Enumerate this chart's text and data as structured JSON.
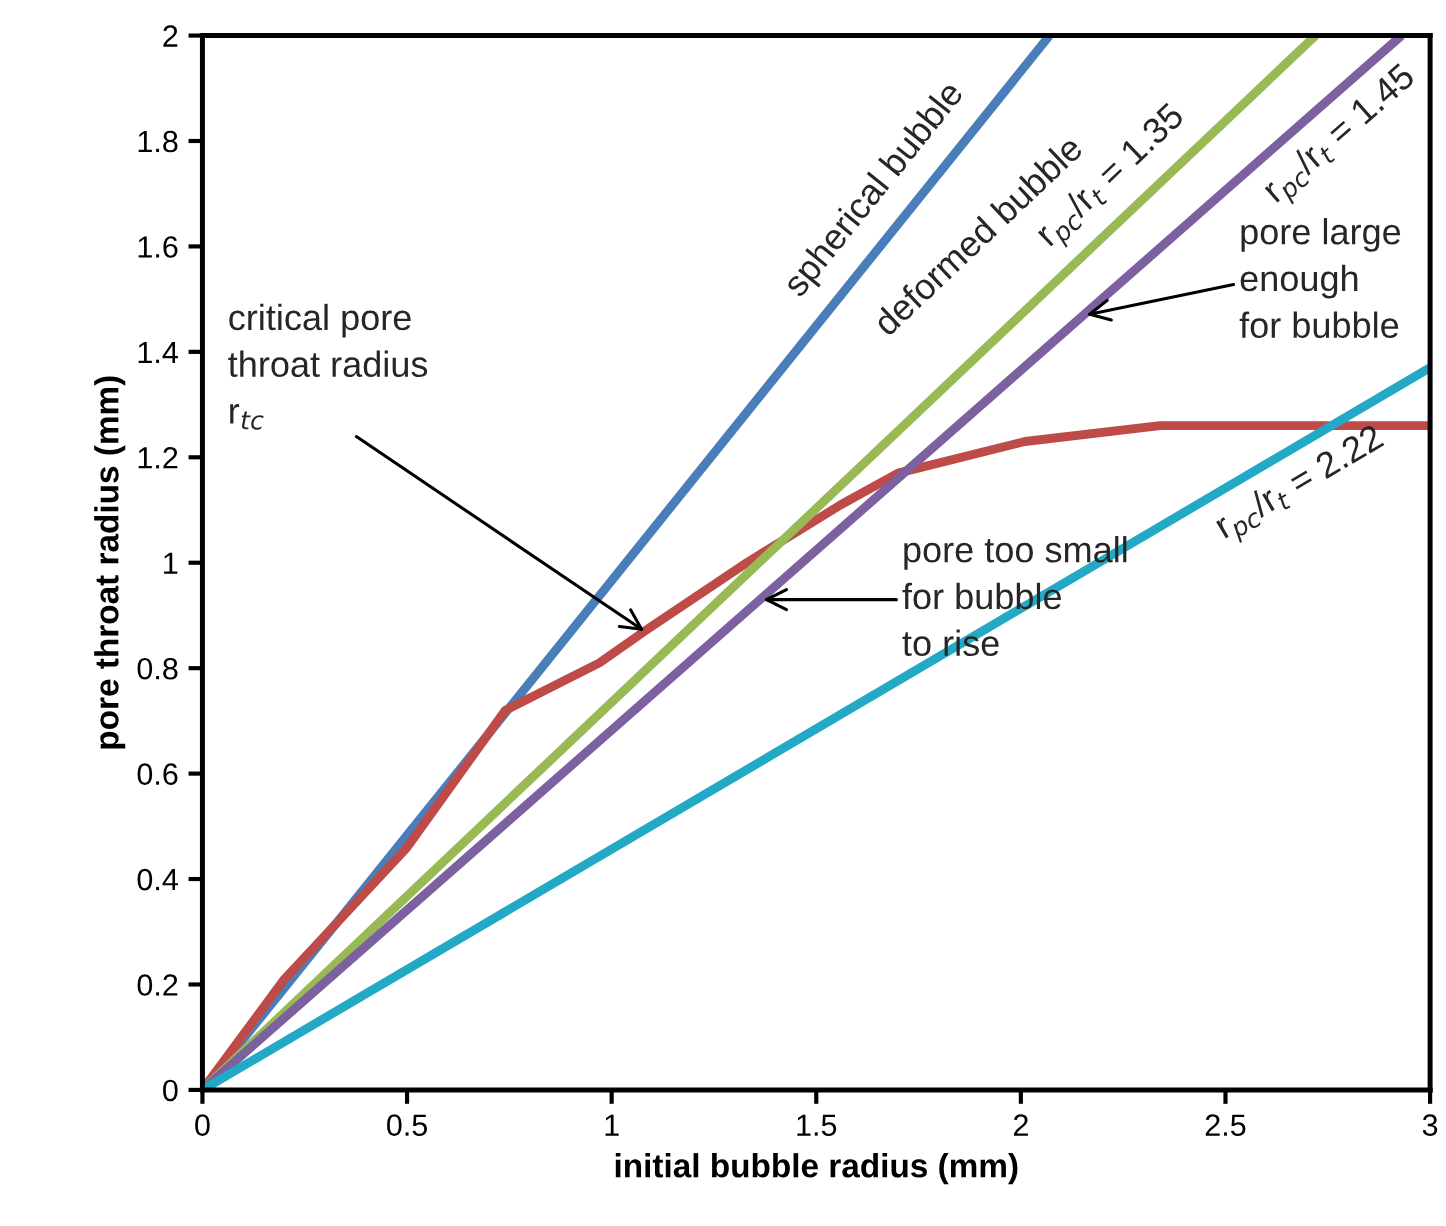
{
  "chart_data": {
    "type": "line",
    "xlabel": "initial bubble radius (mm)",
    "ylabel": "pore throat radius (mm)",
    "xlim": [
      0,
      3
    ],
    "ylim": [
      0,
      2
    ],
    "xticks": [
      0,
      0.5,
      1,
      1.5,
      2,
      2.5,
      3
    ],
    "yticks": [
      0,
      0.2,
      0.4,
      0.6,
      0.8,
      1,
      1.2,
      1.4,
      1.6,
      1.8,
      2
    ],
    "grid": false,
    "legend": false,
    "marker": "none",
    "line_style": "solid",
    "series": [
      {
        "name": "spherical bubble",
        "color": "#4a7ebb",
        "x": [
          0,
          2.07
        ],
        "values": [
          0,
          2
        ]
      },
      {
        "color": "#be4b48",
        "x": [
          0,
          0.2,
          0.5,
          0.74,
          0.97,
          1.08,
          1.33,
          1.56,
          1.7,
          2.01,
          2.34,
          2.67,
          3
        ],
        "values": [
          0,
          0.21,
          0.46,
          0.72,
          0.81,
          0.87,
          1.0,
          1.11,
          1.17,
          1.23,
          1.26,
          1.26,
          1.26
        ]
      },
      {
        "name": "r$_{pc}$/r$_{t}$ = 1.35",
        "color": "#98b954",
        "x": [
          0,
          2.72
        ],
        "values": [
          0,
          2
        ]
      },
      {
        "name": "r$_{pc}$/r$_{t}$ = 1.45",
        "color": "#7d60a0",
        "x": [
          0,
          2.93
        ],
        "values": [
          0,
          2
        ]
      },
      {
        "name": "r$_{pc}$/r$_{t}$ = 2.22",
        "color": "#23a9c6",
        "x": [
          0,
          3
        ],
        "values": [
          0,
          1.37
        ]
      }
    ],
    "annotations": [
      "deformed bubble",
      {
        "text": "critical pore\nthroat radius\nr$_{tc}$",
        "x": 1.08,
        "y": 0.87
      },
      {
        "text": "pore too small\nfor bubble\nto rise",
        "x": 1.37,
        "y": 0.93
      },
      {
        "text": "pore large\nenough\nfor bubble",
        "x": 2.16,
        "y": 1.47
      }
    ]
  }
}
